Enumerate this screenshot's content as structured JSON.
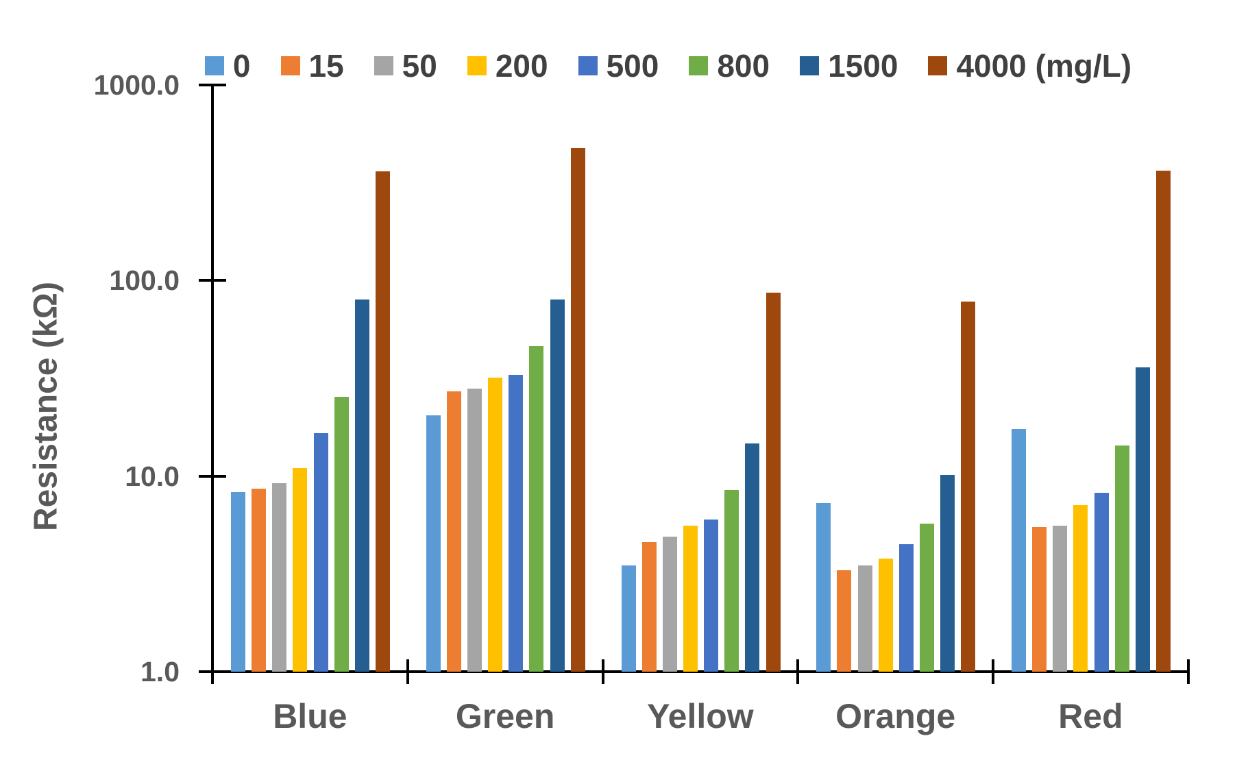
{
  "chart_data": {
    "type": "bar",
    "title": "",
    "xlabel": "",
    "ylabel": "Resistance (kΩ)",
    "y_scale": "log",
    "ylim": [
      1.0,
      1000.0
    ],
    "y_ticks": [
      {
        "label": "1000.0",
        "value": 1000.0
      },
      {
        "label": "100.0",
        "value": 100.0
      },
      {
        "label": "10.0",
        "value": 10.0
      },
      {
        "label": "1.0",
        "value": 1.0
      }
    ],
    "categories": [
      "Blue",
      "Green",
      "Yellow",
      "Orange",
      "Red"
    ],
    "legend_position": "top",
    "grid": false,
    "series": [
      {
        "label": "0",
        "color": "#5B9BD5",
        "values": [
          8.3,
          20.4,
          3.5,
          7.3,
          17.4
        ]
      },
      {
        "label": "15",
        "color": "#ED7D31",
        "values": [
          8.6,
          27.2,
          4.6,
          3.3,
          5.5
        ]
      },
      {
        "label": "50",
        "color": "#A5A5A5",
        "values": [
          9.2,
          28.0,
          4.9,
          3.5,
          5.6
        ]
      },
      {
        "label": "200",
        "color": "#FFC000",
        "values": [
          11.0,
          31.9,
          5.6,
          3.8,
          7.1
        ]
      },
      {
        "label": "500",
        "color": "#4472C4",
        "values": [
          16.6,
          33.0,
          6.0,
          4.5,
          8.2
        ]
      },
      {
        "label": "800",
        "color": "#70AD47",
        "values": [
          25.4,
          46.2,
          8.5,
          5.7,
          14.4
        ]
      },
      {
        "label": "1500",
        "color": "#255E91",
        "values": [
          80,
          80,
          14.7,
          10.1,
          36
        ]
      },
      {
        "label": "4000 (mg/L)",
        "color": "#9E480E",
        "values": [
          362,
          475,
          87,
          78,
          366
        ]
      }
    ]
  }
}
